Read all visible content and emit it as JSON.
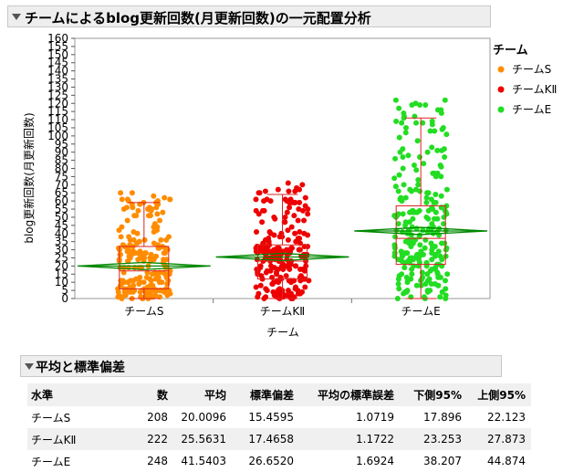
{
  "title": "チームによるblog更新回数(月更新回数)の一元配置分析",
  "chart_data": {
    "type": "scatter",
    "subtype": "oneway-jitter-boxplot-meandiamond",
    "xlabel": "チーム",
    "ylabel": "blog更新回数(月更新回数)",
    "ylim": [
      0,
      160
    ],
    "yticks": [
      0,
      5,
      10,
      15,
      20,
      25,
      30,
      35,
      40,
      45,
      50,
      55,
      60,
      65,
      70,
      75,
      80,
      85,
      90,
      95,
      100,
      105,
      110,
      115,
      120,
      125,
      130,
      135,
      140,
      145,
      150,
      155,
      160
    ],
    "grid": false,
    "legend": {
      "title": "チーム",
      "position": "right"
    },
    "categories": [
      "チームS",
      "チームKⅡ",
      "チームE"
    ],
    "series": [
      {
        "name": "チームS",
        "color": "#ff8c00",
        "n": 208,
        "mean": 20.0096,
        "box": {
          "min": 0,
          "q1": 6,
          "median": 17,
          "q3": 32,
          "max": 59
        }
      },
      {
        "name": "チームKⅡ",
        "color": "#ee0000",
        "n": 222,
        "mean": 25.5631,
        "box": {
          "min": 0,
          "q1": 12,
          "median": 23,
          "q3": 33,
          "max": 64
        }
      },
      {
        "name": "チームE",
        "color": "#22dd22",
        "n": 248,
        "mean": 41.5403,
        "box": {
          "min": 0,
          "q1": 21,
          "median": 37,
          "q3": 57,
          "max": 111
        }
      }
    ]
  },
  "table": {
    "title": "平均と標準偏差",
    "headers": [
      "水準",
      "数",
      "平均",
      "標準偏差",
      "平均の標準誤差",
      "下側95%",
      "上側95%"
    ],
    "rows": [
      [
        "チームS",
        "208",
        "20.0096",
        "15.4595",
        "1.0719",
        "17.896",
        "22.123"
      ],
      [
        "チームKⅡ",
        "222",
        "25.5631",
        "17.4658",
        "1.1722",
        "23.253",
        "27.873"
      ],
      [
        "チームE",
        "248",
        "41.5403",
        "26.6520",
        "1.6924",
        "38.207",
        "44.874"
      ]
    ]
  },
  "colors": {
    "mean_diamond": "#008800",
    "box_outline": "#dd2222",
    "panel_border": "#999999"
  }
}
